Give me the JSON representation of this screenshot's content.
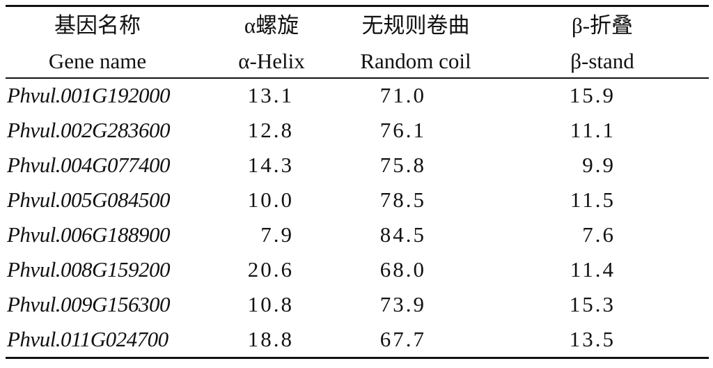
{
  "table": {
    "header": [
      [
        "基因名称",
        "Gene name"
      ],
      [
        "α螺旋",
        "α-Helix"
      ],
      [
        "无规则卷曲",
        "Random coil"
      ],
      [
        "β-折叠",
        "β-stand"
      ]
    ],
    "rows": [
      [
        "Phvul.001G192000",
        "13.1",
        "71.0",
        "15.9"
      ],
      [
        "Phvul.002G283600",
        "12.8",
        "76.1",
        "11.1"
      ],
      [
        "Phvul.004G077400",
        "14.3",
        "75.8",
        "9.9"
      ],
      [
        "Phvul.005G084500",
        "10.0",
        "78.5",
        "11.5"
      ],
      [
        "Phvul.006G188900",
        "7.9",
        "84.5",
        "7.6"
      ],
      [
        "Phvul.008G159200",
        "20.6",
        "68.0",
        "11.4"
      ],
      [
        "Phvul.009G156300",
        "10.8",
        "73.9",
        "15.3"
      ],
      [
        "Phvul.011G024700",
        "18.8",
        "67.7",
        "13.5"
      ]
    ]
  }
}
